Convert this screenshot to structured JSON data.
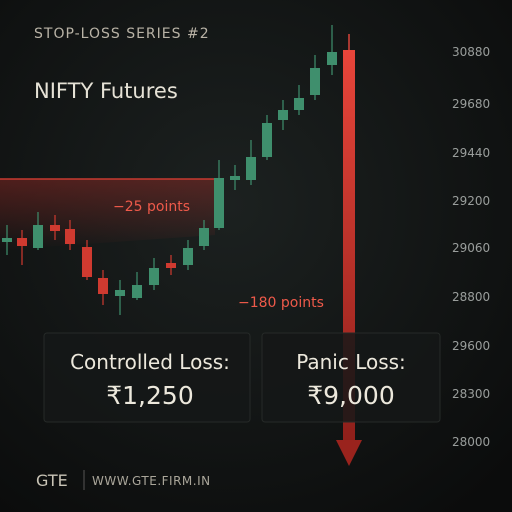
{
  "header": {
    "series_label": "STOP-LOSS SERIES #2",
    "title": "NIFTY Futures"
  },
  "price_labels": [
    "30880",
    "29680",
    "29440",
    "29200",
    "29060",
    "28800",
    "29600",
    "28300",
    "28000"
  ],
  "annotations": {
    "small_loss": "−25 points",
    "big_loss": "−180 points"
  },
  "cards": [
    {
      "label": "Controlled Loss:",
      "amount": "₹1,250"
    },
    {
      "label": "Panic Loss:",
      "amount": "₹9,000"
    }
  ],
  "footer": {
    "brand": "GTE",
    "url": "WWW.GTE.FIRM.IN"
  }
}
